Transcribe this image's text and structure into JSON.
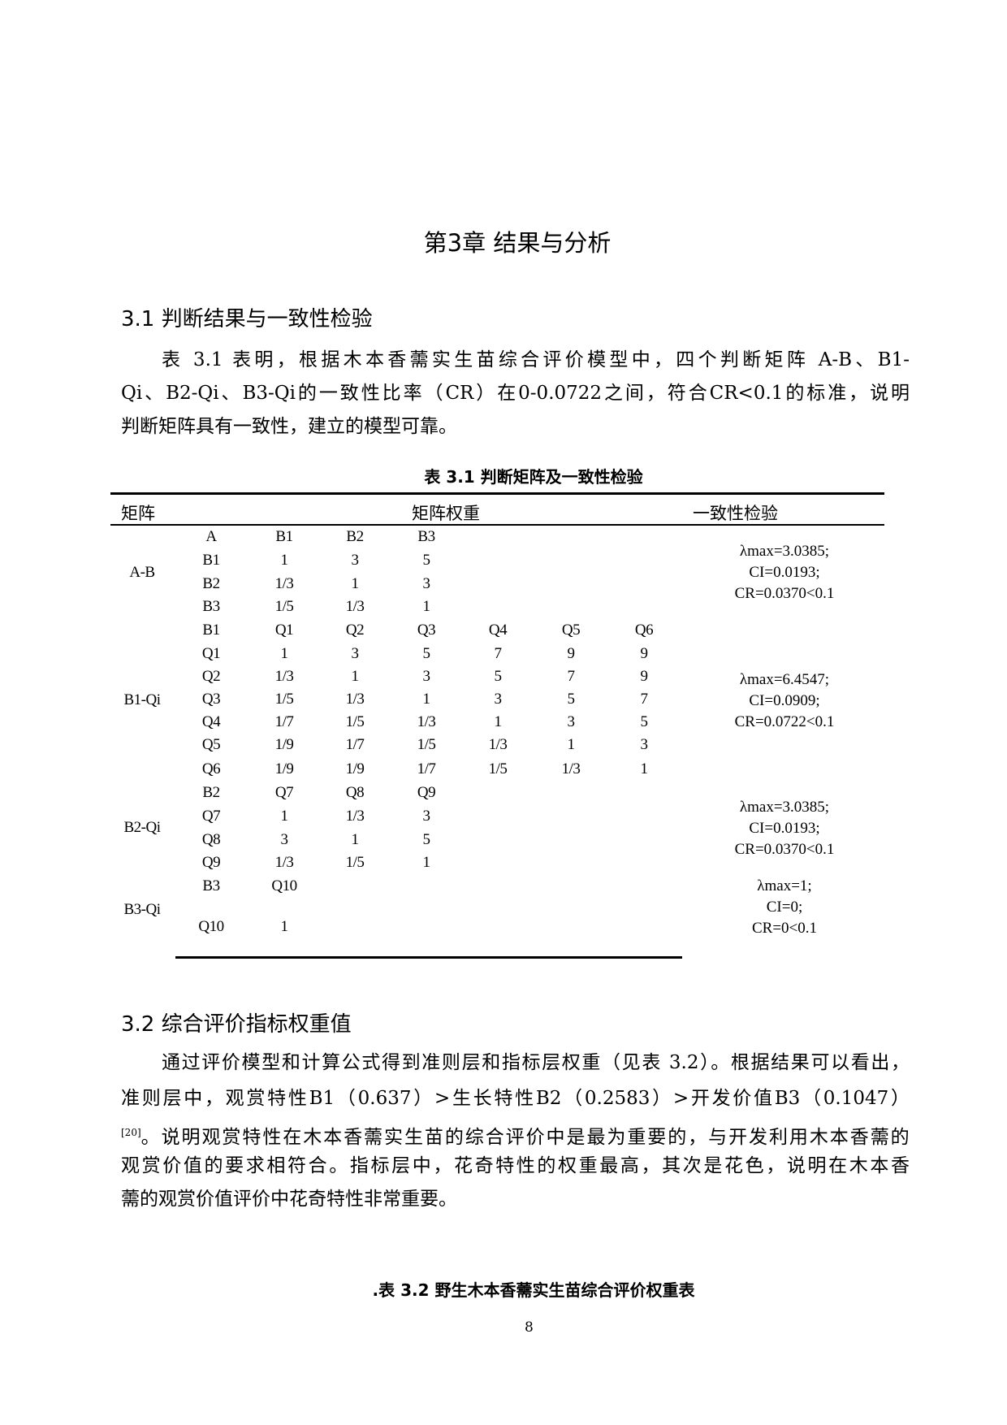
{
  "chapter_title": "第3章  结果与分析",
  "section_1": {
    "heading": "3.1  判断结果与一致性检验",
    "paragraph_lines": [
      "表 3.1 表明，根据木本香薷实生苗综合评价模型中，四个判断矩阵 A-B、B1-",
      "Qi、B2-Qi、B3-Qi的一致性比率（CR）在0-0.0722之间，符合CR<0.1的标准，说明",
      "判断矩阵具有一致性，建立的模型可靠。"
    ]
  },
  "table_1": {
    "caption": "表 3.1  判断矩阵及一致性检验",
    "headers": [
      "矩阵",
      "矩阵权重",
      "一致性检验"
    ],
    "groups": [
      {
        "label": "A-B",
        "rows": [
          [
            "A",
            "B1",
            "B2",
            "B3"
          ],
          [
            "B1",
            "1",
            "3",
            "5"
          ],
          [
            "B2",
            "1/3",
            "1",
            "3"
          ],
          [
            "B3",
            "1/5",
            "1/3",
            "1"
          ]
        ],
        "consistency": [
          "λmax=3.0385;",
          "CI=0.0193;",
          "CR=0.0370<0.1"
        ]
      },
      {
        "label": "B1-Qi",
        "rows": [
          [
            "B1",
            "Q1",
            "Q2",
            "Q3",
            "Q4",
            "Q5",
            "Q6"
          ],
          [
            "Q1",
            "1",
            "3",
            "5",
            "7",
            "9",
            "9"
          ],
          [
            "Q2",
            "1/3",
            "1",
            "3",
            "5",
            "7",
            "9"
          ],
          [
            "Q3",
            "1/5",
            "1/3",
            "1",
            "3",
            "5",
            "7"
          ],
          [
            "Q4",
            "1/7",
            "1/5",
            "1/3",
            "1",
            "3",
            "5"
          ],
          [
            "Q5",
            "1/9",
            "1/7",
            "1/5",
            "1/3",
            "1",
            "3"
          ],
          [
            "Q6",
            "1/9",
            "1/9",
            "1/7",
            "1/5",
            "1/3",
            "1"
          ]
        ],
        "consistency": [
          "λmax=6.4547;",
          "CI=0.0909;",
          "CR=0.0722<0.1"
        ]
      },
      {
        "label": "B2-Qi",
        "rows": [
          [
            "B2",
            "Q7",
            "Q8",
            "Q9"
          ],
          [
            "Q7",
            "1",
            "1/3",
            "3"
          ],
          [
            "Q8",
            "3",
            "1",
            "5"
          ],
          [
            "Q9",
            "1/3",
            "1/5",
            "1"
          ]
        ],
        "consistency": [
          "λmax=3.0385;",
          "CI=0.0193;",
          "CR=0.0370<0.1"
        ]
      },
      {
        "label": "B3-Qi",
        "rows": [
          [
            "B3",
            "Q10"
          ],
          [
            "Q10",
            "1"
          ]
        ],
        "consistency": [
          "λmax=1;",
          "CI=0;",
          "CR=0<0.1"
        ]
      }
    ]
  },
  "section_2": {
    "heading": "3.2  综合评价指标权重值",
    "paragraph_lines": [
      "通过评价模型和计算公式得到准则层和指标层权重（见表 3.2）。根据结果可以看出，",
      "准则层中，观赏特性B1（0.637）>生长特性B2（0.2583）>开发价值B3（0.1047）",
      "。说明观赏特性在木本香薷实生苗的综合评价中是最为重要的，与开发利用木本香薷的",
      "观赏价值的要求相符合。指标层中，花奇特性的权重最高，其次是花色，说明在木本香",
      "薷的观赏价值评价中花奇特性非常重要。"
    ],
    "citation": "[20]"
  },
  "table_2_caption": ".表 3.2  野生木本香薷实生苗综合评价权重表",
  "page_number": "8"
}
